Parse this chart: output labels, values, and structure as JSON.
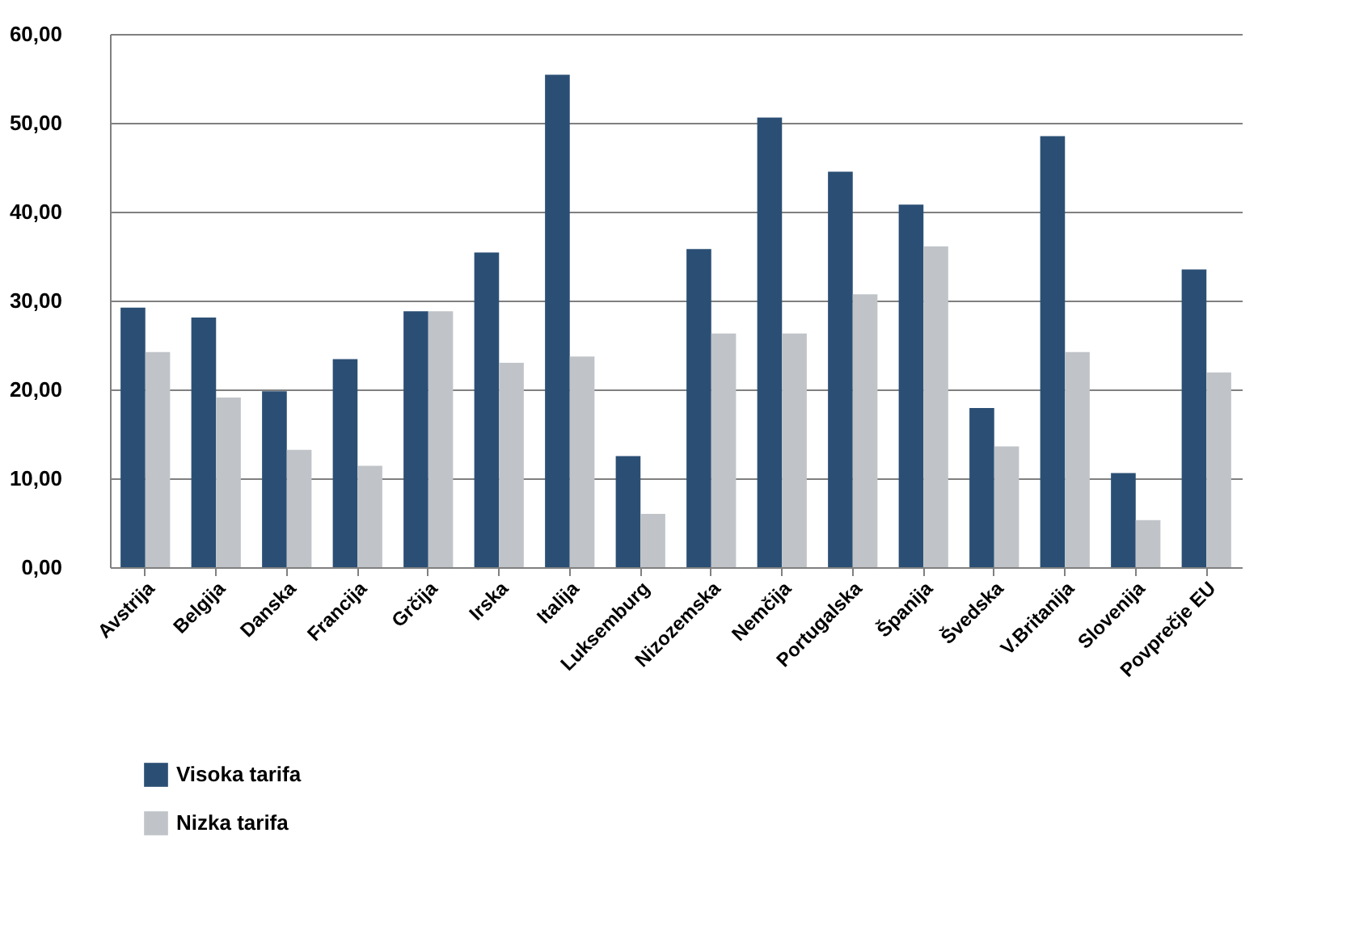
{
  "chart_data": {
    "type": "bar",
    "categories": [
      "Avstrija",
      "Belgija",
      "Danska",
      "Francija",
      "Grčija",
      "Irska",
      "Italija",
      "Luksemburg",
      "Nizozemska",
      "Nemčija",
      "Portugalska",
      "Španija",
      "Švedska",
      "V.Britanija",
      "Slovenija",
      "Povprečje EU"
    ],
    "series": [
      {
        "name": "Visoka tarifa",
        "color": "#2b4f74",
        "values": [
          29.2,
          28.1,
          19.8,
          23.4,
          28.8,
          35.4,
          55.4,
          12.5,
          35.8,
          50.6,
          44.5,
          40.8,
          17.9,
          48.5,
          10.6,
          33.5
        ]
      },
      {
        "name": "Nizka tarifa",
        "color": "#c0c4c8",
        "values": [
          24.2,
          19.1,
          13.2,
          11.4,
          28.8,
          23.0,
          23.7,
          6.0,
          26.3,
          26.3,
          30.7,
          36.1,
          13.6,
          24.2,
          5.3,
          21.9
        ]
      }
    ],
    "ylim": [
      0,
      60
    ],
    "yticks": [
      {
        "value": 0,
        "label": "0,00"
      },
      {
        "value": 10,
        "label": "10,00"
      },
      {
        "value": 20,
        "label": "20,00"
      },
      {
        "value": 30,
        "label": "30,00"
      },
      {
        "value": 40,
        "label": "40,00"
      },
      {
        "value": 50,
        "label": "50,00"
      },
      {
        "value": 60,
        "label": "60,00"
      }
    ],
    "grid": "y",
    "legend": "bottom left"
  }
}
